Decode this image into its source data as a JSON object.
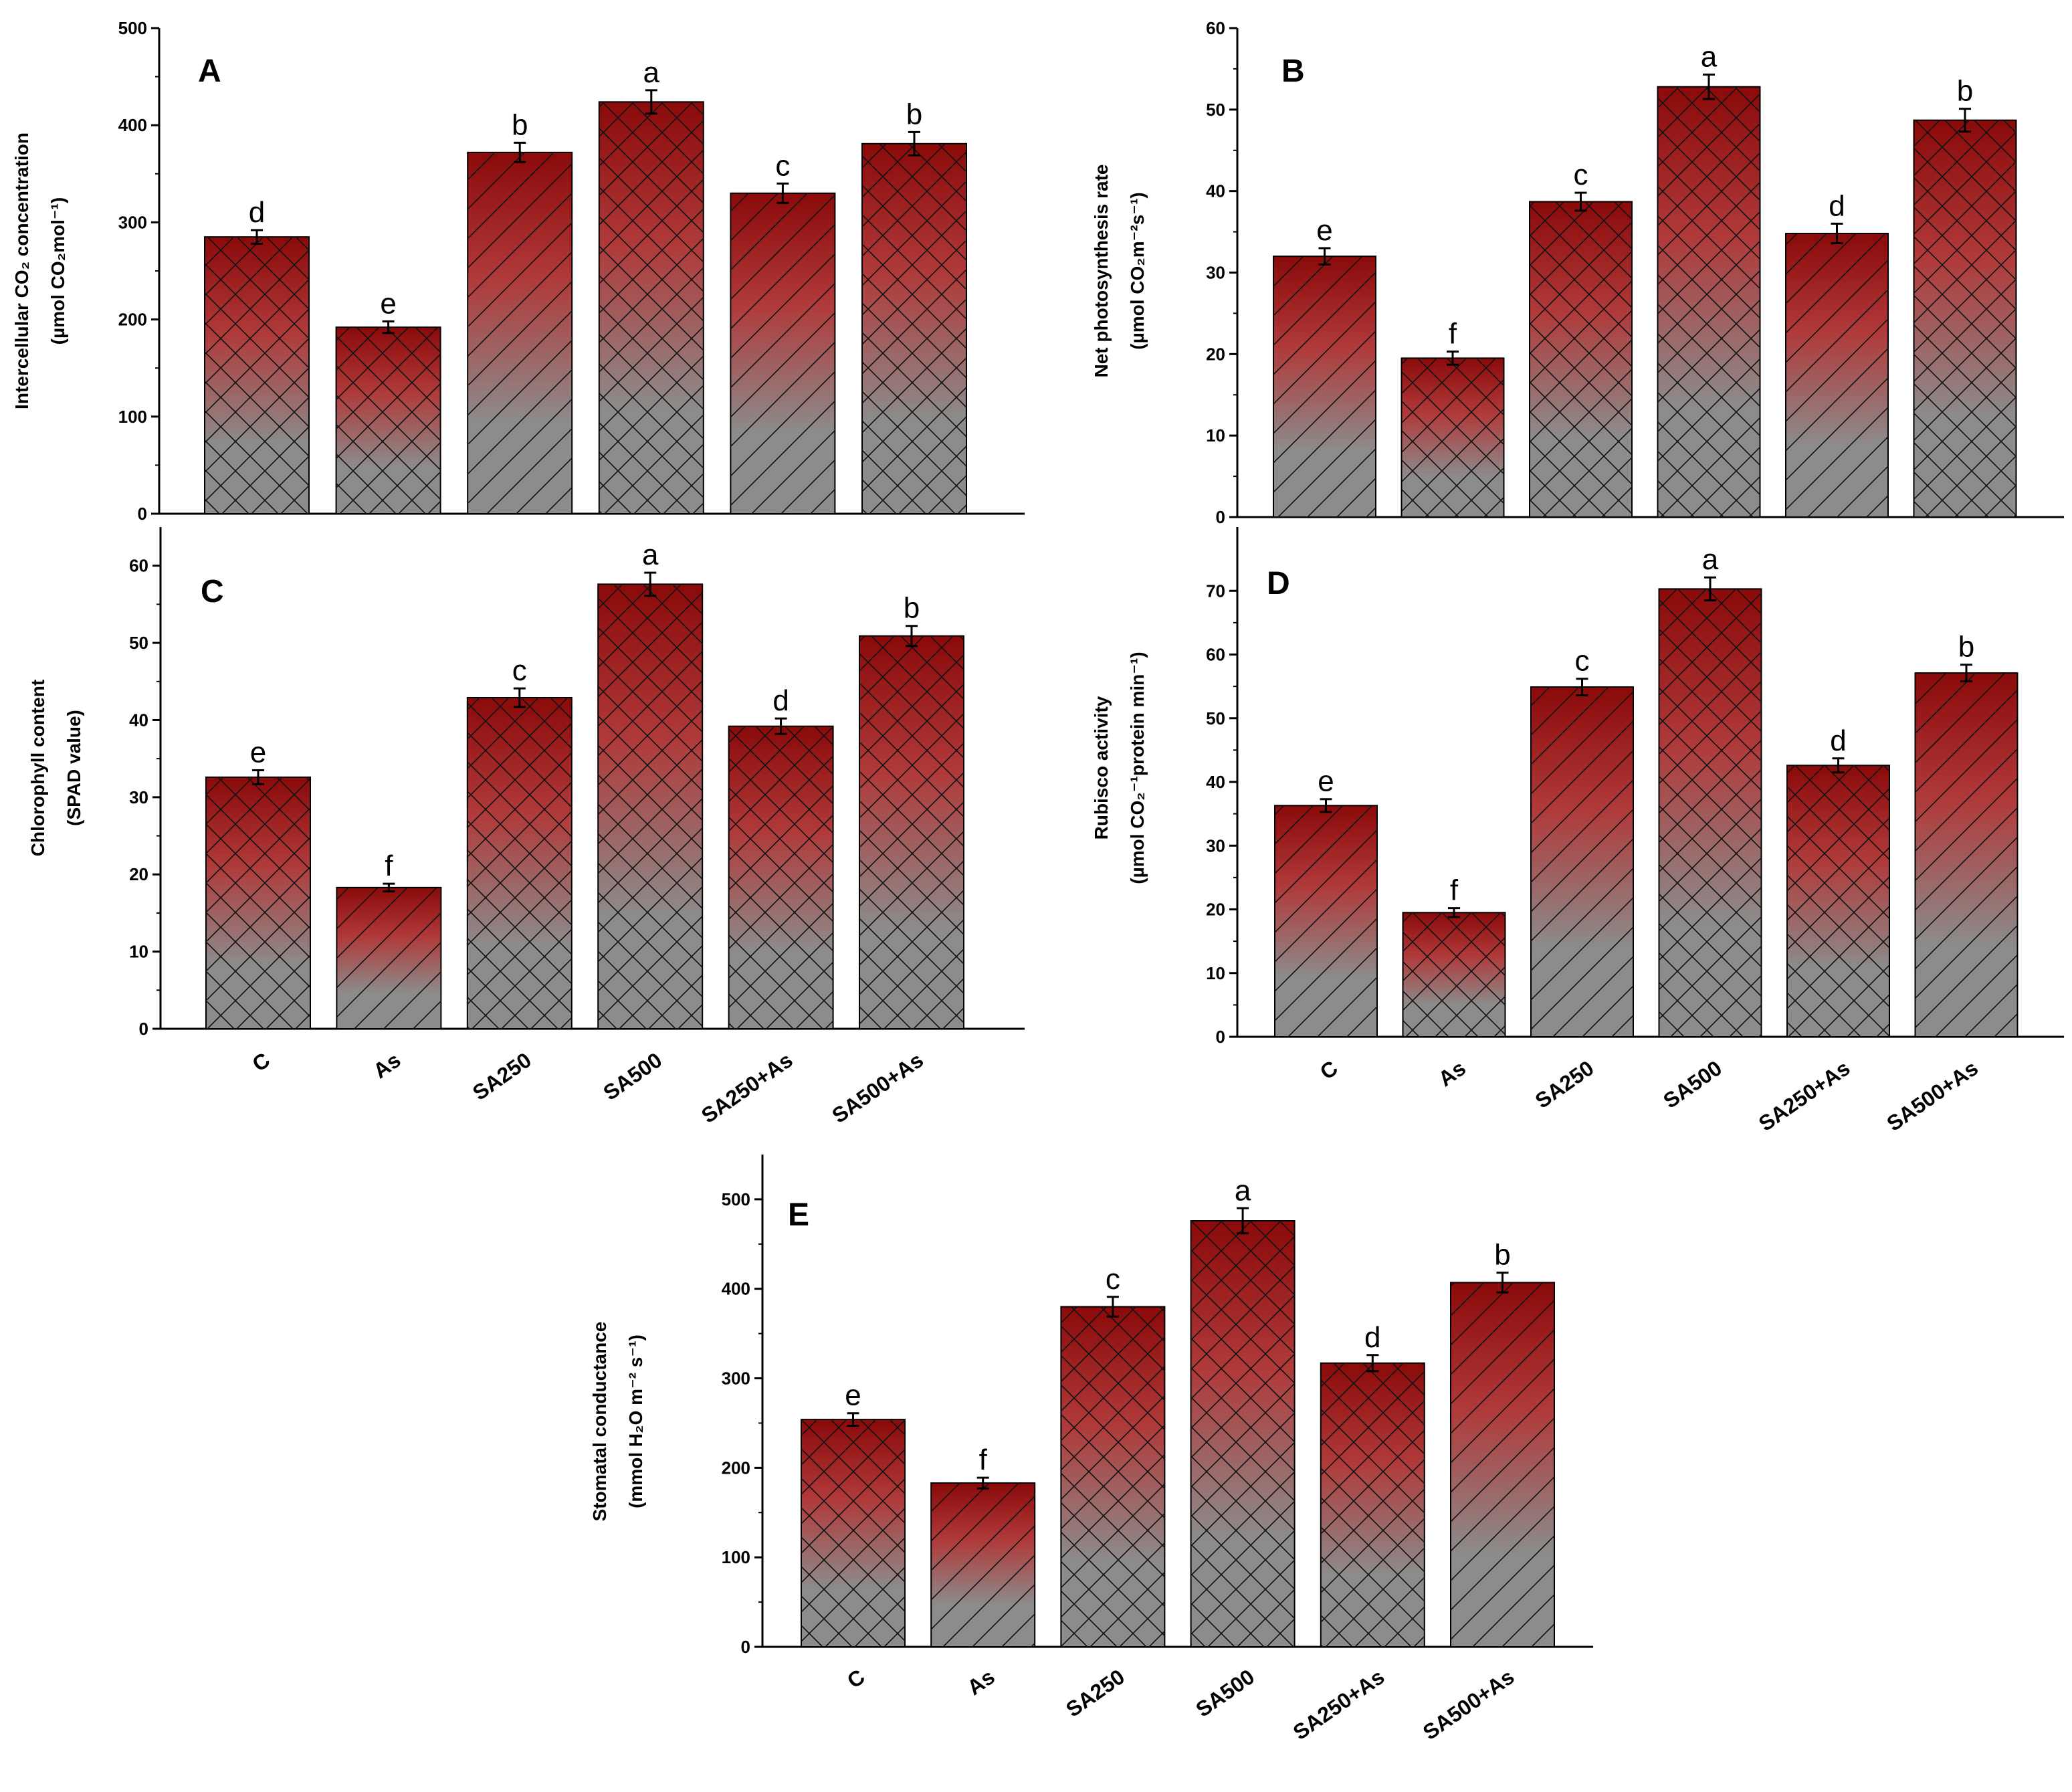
{
  "figure": {
    "colors": {
      "bar_top": "#8b0a0a",
      "bar_mid": "#b03a3a",
      "bar_bottom": "#8c8c8c",
      "hatch": "#111111",
      "axis": "#000000"
    }
  },
  "chart_data": [
    {
      "id": "A",
      "type": "bar",
      "panel_letter": "A",
      "ylabel_line1": "Intercellular CO₂ concentration",
      "ylabel_line2": "(µmol CO₂mol⁻¹)",
      "categories": [
        "C",
        "As",
        "SA250",
        "SA500",
        "SA250+As",
        "SA500+As"
      ],
      "values": [
        285,
        192,
        372,
        424,
        330,
        381
      ],
      "errors": [
        7,
        6,
        10,
        12,
        10,
        12
      ],
      "significance": [
        "d",
        "e",
        "b",
        "a",
        "c",
        "b"
      ],
      "ylim": [
        0,
        500
      ],
      "yticks": [
        0,
        100,
        200,
        300,
        400,
        500
      ],
      "hatch": [
        "cross",
        "cross",
        "diag",
        "cross",
        "diag",
        "cross"
      ]
    },
    {
      "id": "B",
      "type": "bar",
      "panel_letter": "B",
      "ylabel_line1": "Net photosynthesis rate",
      "ylabel_line2": "(µmol CO₂m⁻²s⁻¹)",
      "categories": [
        "C",
        "As",
        "SA250",
        "SA500",
        "SA250+As",
        "SA500+As"
      ],
      "values": [
        32,
        19.5,
        38.7,
        52.8,
        34.8,
        48.7
      ],
      "errors": [
        1,
        0.8,
        1.1,
        1.5,
        1.2,
        1.4
      ],
      "significance": [
        "e",
        "f",
        "c",
        "a",
        "d",
        "b"
      ],
      "ylim": [
        0,
        60
      ],
      "yticks": [
        0,
        10,
        20,
        30,
        40,
        50,
        60
      ],
      "hatch": [
        "diag",
        "cross",
        "cross",
        "cross",
        "diag",
        "cross"
      ]
    },
    {
      "id": "C",
      "type": "bar",
      "panel_letter": "C",
      "ylabel_line1": "Chlorophyll content",
      "ylabel_line2": "(SPAD value)",
      "categories": [
        "C",
        "As",
        "SA250",
        "SA500",
        "SA250+As",
        "SA500+As"
      ],
      "values": [
        32.6,
        18.3,
        42.9,
        57.6,
        39.2,
        50.9
      ],
      "errors": [
        0.9,
        0.5,
        1.2,
        1.5,
        1.0,
        1.3
      ],
      "significance": [
        "e",
        "f",
        "c",
        "a",
        "d",
        "b"
      ],
      "ylim": [
        0,
        65
      ],
      "yticks": [
        0,
        10,
        20,
        30,
        40,
        50,
        60
      ],
      "hatch": [
        "cross",
        "diag",
        "cross",
        "cross",
        "cross",
        "cross"
      ]
    },
    {
      "id": "D",
      "type": "bar",
      "panel_letter": "D",
      "ylabel_line1": "Rubisco activity",
      "ylabel_line2": "(µmol CO₂⁻¹protein min⁻¹)",
      "categories": [
        "C",
        "As",
        "SA250",
        "SA500",
        "SA250+As",
        "SA500+As"
      ],
      "values": [
        36.3,
        19.5,
        54.9,
        70.3,
        42.6,
        57.1
      ],
      "errors": [
        1.0,
        0.7,
        1.3,
        1.8,
        1.1,
        1.3
      ],
      "significance": [
        "e",
        "f",
        "c",
        "a",
        "d",
        "b"
      ],
      "ylim": [
        0,
        80
      ],
      "yticks": [
        0,
        10,
        20,
        30,
        40,
        50,
        60,
        70
      ],
      "hatch": [
        "diag",
        "cross",
        "diag",
        "cross",
        "cross",
        "diag"
      ]
    },
    {
      "id": "E",
      "type": "bar",
      "panel_letter": "E",
      "ylabel_line1": "Stomatal conductance",
      "ylabel_line2": "(mmol H₂O m⁻² s⁻¹)",
      "categories": [
        "C",
        "As",
        "SA250",
        "SA500",
        "SA250+As",
        "SA500+As"
      ],
      "values": [
        254,
        183,
        380,
        476,
        317,
        407
      ],
      "errors": [
        7,
        6,
        11,
        14,
        9,
        11
      ],
      "significance": [
        "e",
        "f",
        "c",
        "a",
        "d",
        "b"
      ],
      "ylim": [
        0,
        550
      ],
      "yticks": [
        0,
        100,
        200,
        300,
        400,
        500
      ],
      "hatch": [
        "cross",
        "diag",
        "cross",
        "cross",
        "cross",
        "diag"
      ]
    }
  ]
}
